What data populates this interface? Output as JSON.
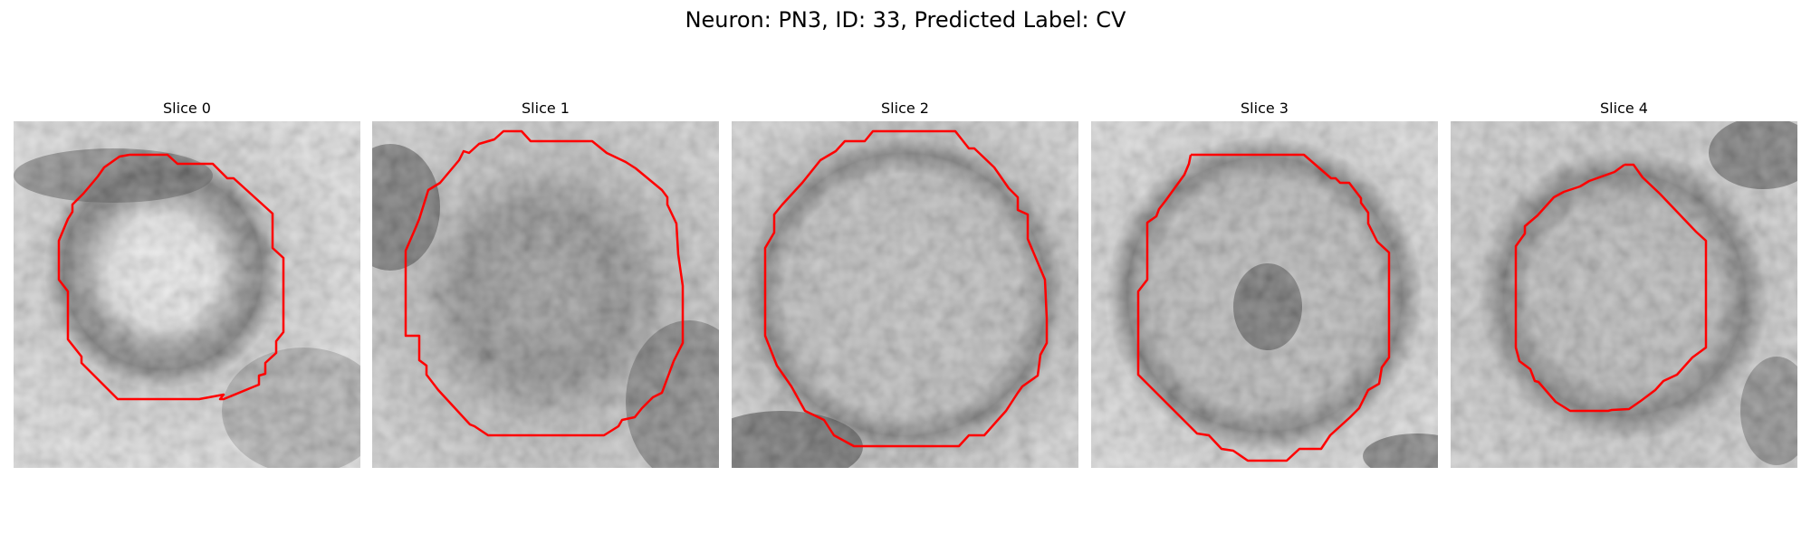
{
  "figure": {
    "title": "Neuron: PN3, ID: 33, Predicted Label: CV"
  },
  "panels": [
    {
      "title": "Slice 0"
    },
    {
      "title": "Slice 1"
    },
    {
      "title": "Slice 2"
    },
    {
      "title": "Slice 3"
    },
    {
      "title": "Slice 4"
    }
  ],
  "colors": {
    "contour": "#ff0000",
    "image_light": "#f0f0f0",
    "image_dark": "#1e1e1e"
  }
}
